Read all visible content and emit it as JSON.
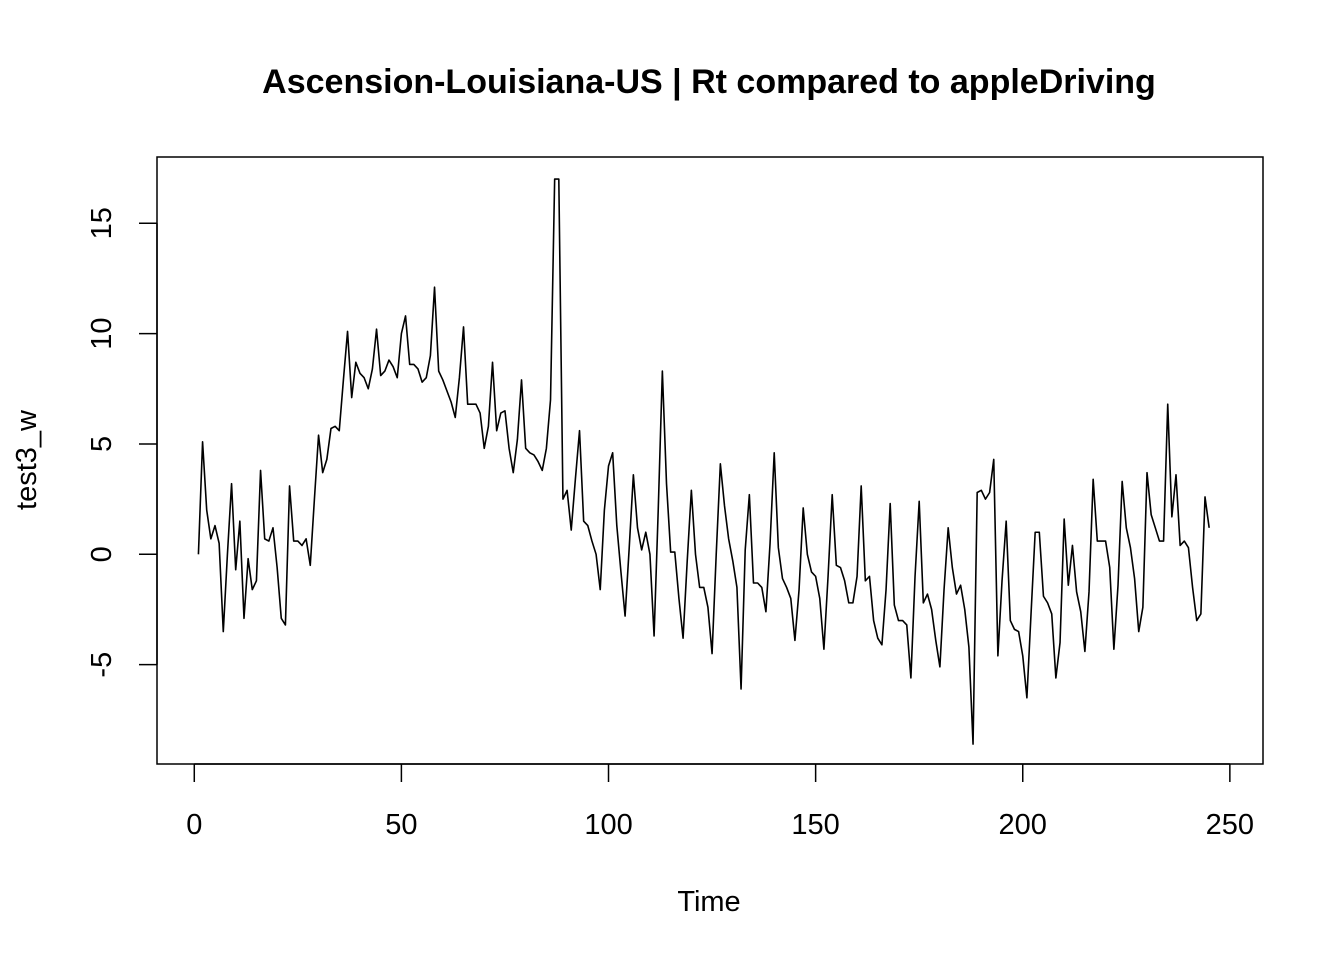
{
  "chart_data": {
    "type": "line",
    "title": "Ascension-Louisiana-US | Rt compared to appleDriving",
    "xlabel": "Time",
    "ylabel": "test3_w",
    "xlim": [
      -9,
      258
    ],
    "ylim": [
      -9.5,
      18
    ],
    "x_ticks": [
      0,
      50,
      100,
      150,
      200,
      250
    ],
    "x_tick_labels": [
      "0",
      "50",
      "100",
      "150",
      "200",
      "250"
    ],
    "y_ticks": [
      -5,
      0,
      5,
      10,
      15
    ],
    "y_tick_labels": [
      "-5",
      "0",
      "5",
      "10",
      "15"
    ],
    "grid": false,
    "series": [
      {
        "x_start": 1,
        "x_step": 1,
        "values": [
          0.0,
          5.1,
          2.0,
          0.7,
          1.3,
          0.5,
          -3.5,
          0.0,
          3.2,
          -0.7,
          1.5,
          -2.9,
          -0.2,
          -1.6,
          -1.2,
          3.8,
          0.7,
          0.6,
          1.2,
          -0.6,
          -2.9,
          -3.2,
          3.1,
          0.6,
          0.6,
          0.4,
          0.7,
          -0.5,
          2.5,
          5.4,
          3.7,
          4.3,
          5.7,
          5.8,
          5.6,
          7.9,
          10.1,
          7.1,
          8.7,
          8.2,
          8.0,
          7.5,
          8.4,
          10.2,
          8.1,
          8.3,
          8.8,
          8.5,
          8.0,
          10.0,
          10.8,
          8.6,
          8.6,
          8.4,
          7.8,
          8.0,
          9.0,
          12.1,
          8.3,
          7.9,
          7.4,
          6.9,
          6.2,
          8.0,
          10.3,
          6.8,
          6.8,
          6.8,
          6.4,
          4.8,
          5.8,
          8.7,
          5.6,
          6.4,
          6.5,
          4.8,
          3.7,
          5.2,
          7.9,
          4.8,
          4.6,
          4.5,
          4.2,
          3.8,
          4.8,
          7.0,
          17.0,
          17.0,
          2.5,
          2.9,
          1.1,
          3.4,
          5.6,
          1.5,
          1.3,
          0.6,
          0.0,
          -1.6,
          2.0,
          4.0,
          4.6,
          1.3,
          -0.8,
          -2.8,
          0.3,
          3.6,
          1.2,
          0.2,
          1.0,
          0.0,
          -3.7,
          2.0,
          8.3,
          3.2,
          0.1,
          0.1,
          -2.0,
          -3.8,
          -0.3,
          2.9,
          0.0,
          -1.5,
          -1.5,
          -2.4,
          -4.5,
          0.0,
          4.1,
          2.2,
          0.7,
          -0.3,
          -1.5,
          -6.1,
          0.2,
          2.7,
          -1.3,
          -1.3,
          -1.5,
          -2.6,
          0.5,
          4.6,
          0.3,
          -1.1,
          -1.5,
          -2.0,
          -3.9,
          -1.6,
          2.1,
          0.0,
          -0.8,
          -1.0,
          -2.0,
          -4.3,
          -1.0,
          2.7,
          -0.5,
          -0.6,
          -1.2,
          -2.2,
          -2.2,
          -1.0,
          3.1,
          -1.2,
          -1.0,
          -3.0,
          -3.8,
          -4.1,
          -1.6,
          2.3,
          -2.3,
          -3.0,
          -3.0,
          -3.2,
          -5.6,
          -1.0,
          2.4,
          -2.2,
          -1.8,
          -2.5,
          -3.9,
          -5.1,
          -1.6,
          1.2,
          -0.6,
          -1.8,
          -1.4,
          -2.5,
          -4.2,
          -8.6,
          2.8,
          2.9,
          2.5,
          2.8,
          4.3,
          -4.6,
          -1.2,
          1.5,
          -3.0,
          -3.4,
          -3.5,
          -4.6,
          -6.5,
          -2.7,
          1.0,
          1.0,
          -1.9,
          -2.2,
          -2.7,
          -5.6,
          -4.0,
          1.6,
          -1.4,
          0.4,
          -1.7,
          -2.6,
          -4.4,
          -1.7,
          3.4,
          0.6,
          0.6,
          0.6,
          -0.6,
          -4.3,
          -1.4,
          3.3,
          1.2,
          0.3,
          -1.1,
          -3.5,
          -2.4,
          3.7,
          1.8,
          1.2,
          0.6,
          0.6,
          6.8,
          1.7,
          3.6,
          0.4,
          0.6,
          0.3,
          -1.5,
          -3.0,
          -2.7,
          2.6,
          1.2
        ]
      }
    ]
  },
  "colors": {
    "line": "#000000",
    "axis": "#000000",
    "background": "#ffffff"
  }
}
